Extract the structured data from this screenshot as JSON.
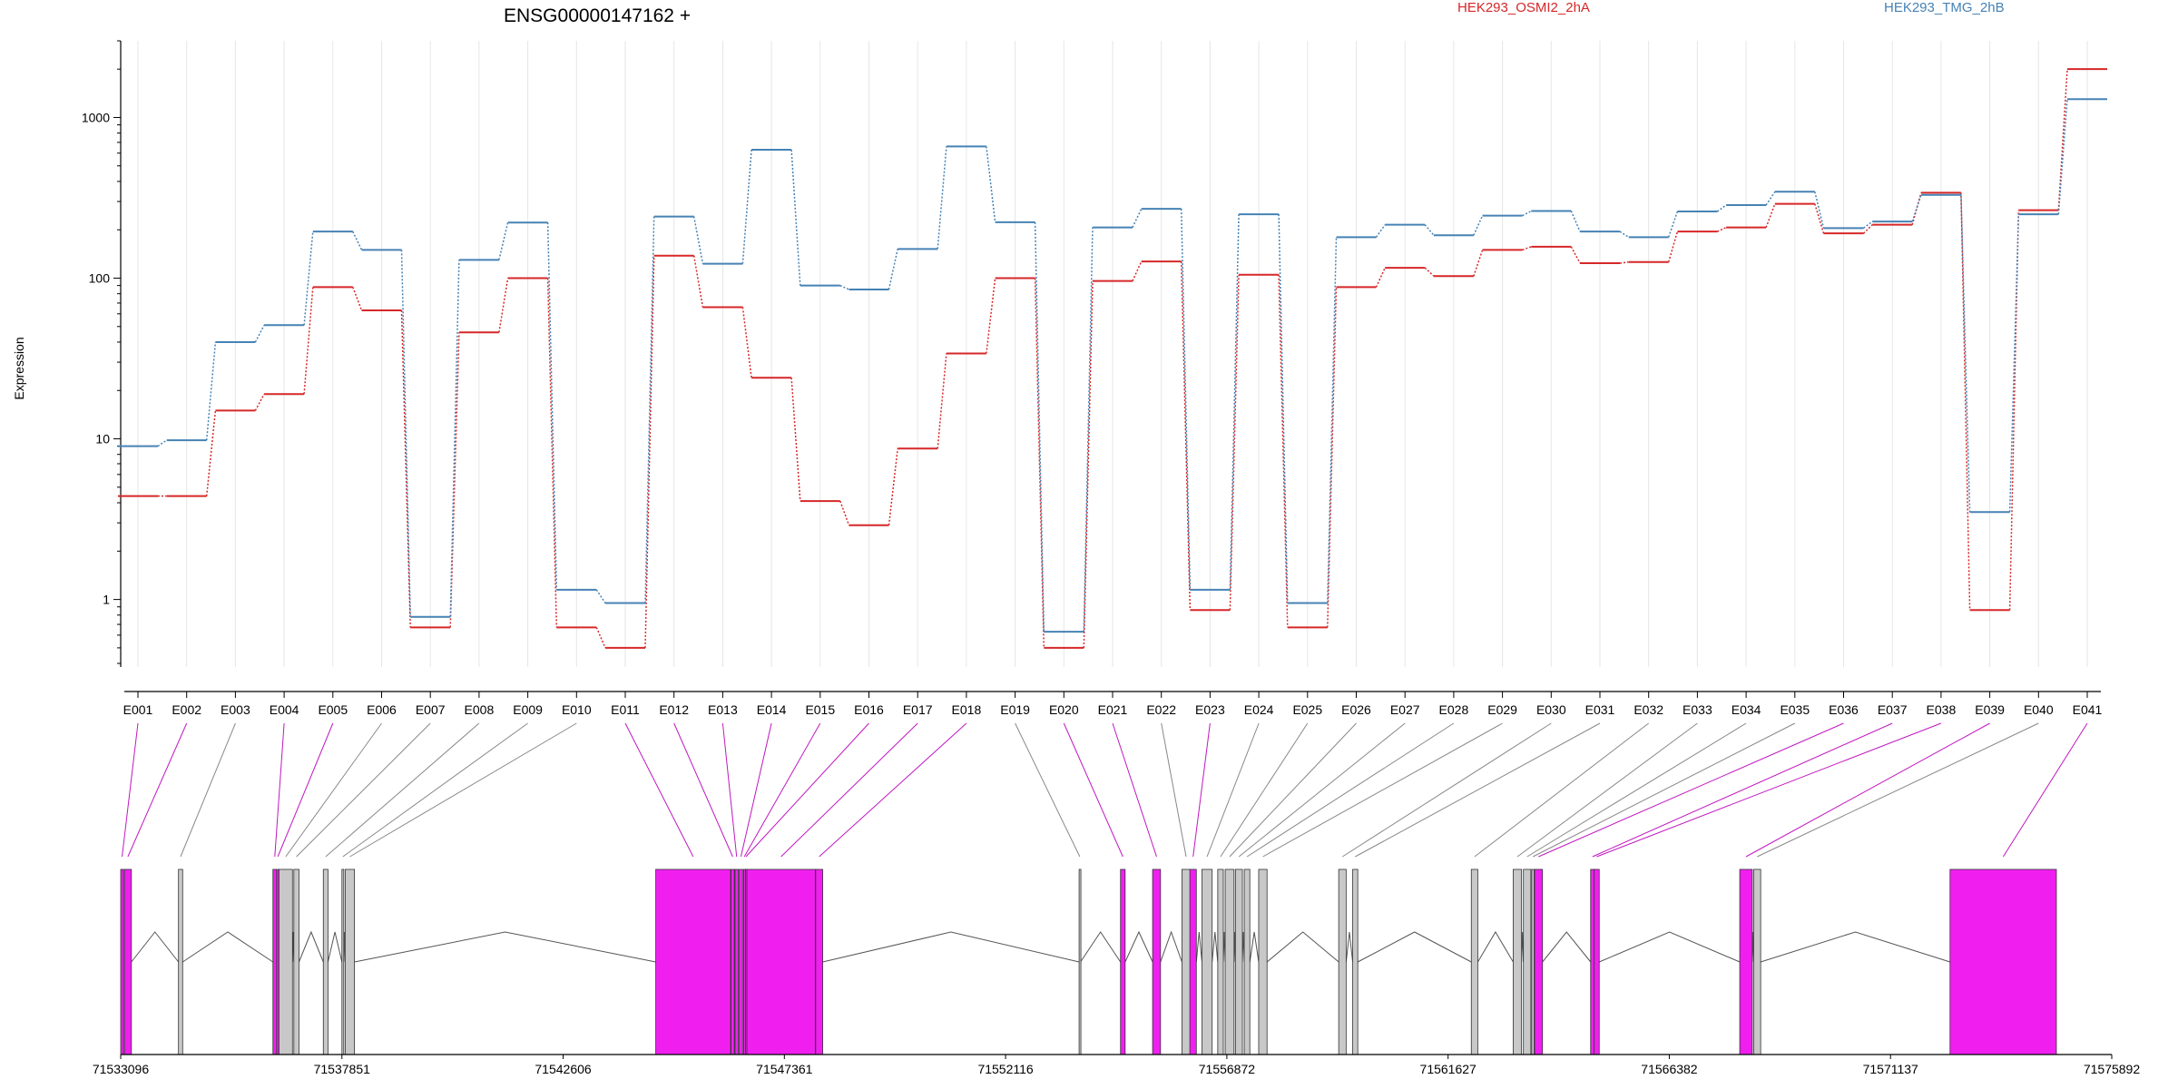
{
  "chart_data": {
    "type": "line",
    "title": "ENSG00000147162 +",
    "ylabel": "Expression",
    "y_scale": "log",
    "ylim": [
      0.38,
      3000
    ],
    "y_ticks": [
      1,
      10,
      100,
      1000
    ],
    "y_tick_labels": [
      "1",
      "10",
      "100",
      "1000"
    ],
    "legend_position": "top-right",
    "categories": [
      "E001",
      "E002",
      "E003",
      "E004",
      "E005",
      "E006",
      "E007",
      "E008",
      "E009",
      "E010",
      "E011",
      "E012",
      "E013",
      "E014",
      "E015",
      "E016",
      "E017",
      "E018",
      "E019",
      "E020",
      "E021",
      "E022",
      "E023",
      "E024",
      "E025",
      "E026",
      "E027",
      "E028",
      "E029",
      "E030",
      "E031",
      "E032",
      "E033",
      "E034",
      "E035",
      "E036",
      "E037",
      "E038",
      "E039",
      "E040",
      "E041"
    ],
    "series": [
      {
        "name": "HEK293_OSMI2_2hA",
        "color": "#d62728",
        "values": [
          4.4,
          4.4,
          15,
          19,
          88,
          63,
          0.67,
          46,
          100,
          0.67,
          0.5,
          138,
          66,
          24,
          4.1,
          2.9,
          8.7,
          34,
          100,
          0.5,
          96,
          127,
          0.86,
          105,
          0.67,
          88,
          116,
          103,
          150,
          157,
          124,
          126,
          195,
          207,
          290,
          190,
          215,
          340,
          0.86,
          265,
          2000
        ]
      },
      {
        "name": "HEK293_TMG_2hB",
        "color": "#4682b4",
        "values": [
          9,
          9.8,
          40,
          51,
          195,
          150,
          0.78,
          130,
          222,
          1.15,
          0.95,
          242,
          123,
          630,
          90,
          85,
          152,
          660,
          223,
          0.63,
          207,
          270,
          1.15,
          250,
          0.95,
          180,
          215,
          185,
          245,
          262,
          195,
          180,
          260,
          285,
          345,
          205,
          225,
          330,
          3.5,
          250,
          1300
        ]
      }
    ],
    "genomic_axis": {
      "ticks": [
        "71533096",
        "71537851",
        "71542606",
        "71547361",
        "71552116",
        "71556872",
        "71561627",
        "71566382",
        "71571137",
        "71575892"
      ],
      "start": 71533096,
      "end": 71575892,
      "exon_starts": [
        71533096,
        71533175,
        71534338,
        71536368,
        71536468,
        71536498,
        71536818,
        71537451,
        71537851,
        71537921,
        71544596,
        71546215,
        71546300,
        71546390,
        71546485,
        71546525,
        71546555,
        71548035,
        71553696,
        71554586,
        71555276,
        71555906,
        71556076,
        71556336,
        71556676,
        71556836,
        71557056,
        71557246,
        71557556,
        71559276,
        71559576,
        71562126,
        71563026,
        71563246,
        71563426,
        71563486,
        71564691,
        71564766,
        71567896,
        71568196,
        71572416
      ],
      "exon_ends": [
        71533155,
        71533326,
        71534428,
        71536448,
        71536478,
        71536788,
        71536928,
        71537551,
        71537891,
        71538121,
        71546205,
        71546285,
        71546370,
        71546465,
        71546515,
        71546545,
        71548025,
        71548185,
        71553726,
        71554686,
        71555446,
        71556086,
        71556216,
        71556556,
        71556796,
        71557026,
        71557206,
        71557366,
        71557736,
        71559436,
        71559686,
        71562266,
        71563206,
        71563406,
        71563476,
        71563656,
        71564771,
        71564876,
        71568166,
        71568346,
        71574702
      ],
      "exon_highlight": [
        true,
        true,
        false,
        true,
        true,
        false,
        false,
        false,
        false,
        false,
        true,
        true,
        true,
        true,
        true,
        true,
        true,
        true,
        false,
        true,
        true,
        false,
        true,
        false,
        false,
        false,
        false,
        false,
        false,
        false,
        false,
        false,
        false,
        false,
        false,
        true,
        true,
        true,
        true,
        false,
        true
      ]
    }
  }
}
